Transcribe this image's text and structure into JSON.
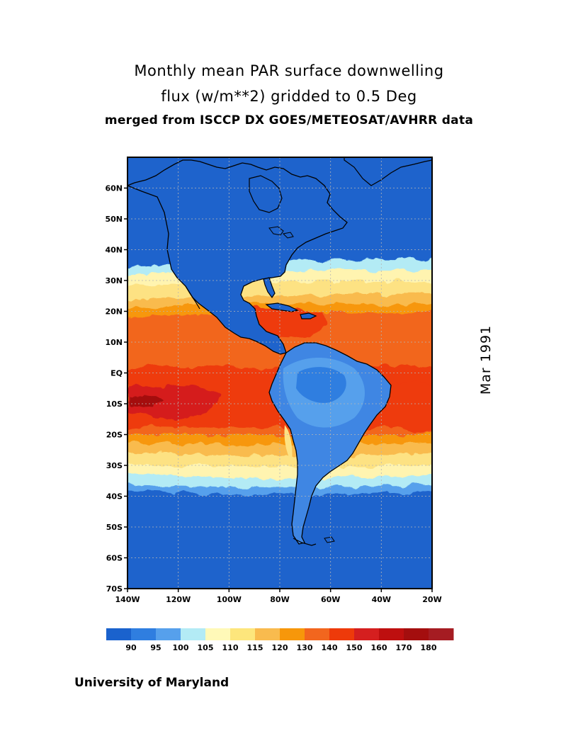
{
  "header": {
    "title_line1": "Monthly mean PAR surface downwelling",
    "title_line2": "flux (w/m**2) gridded to 0.5 Deg",
    "title_line3": "merged from ISCCP DX GOES/METEOSAT/AVHRR data"
  },
  "date_label": "Mar 1991",
  "credit": "University of Maryland",
  "map": {
    "lon_range": [
      -140,
      -20
    ],
    "lat_range": [
      -70,
      70
    ],
    "x_ticks": [
      "140W",
      "120W",
      "100W",
      "80W",
      "60W",
      "40W",
      "20W"
    ],
    "y_ticks": [
      "60N",
      "50N",
      "40N",
      "30N",
      "20N",
      "10N",
      "EQ",
      "10S",
      "20S",
      "30S",
      "40S",
      "50S",
      "60S",
      "70S"
    ],
    "gridlines": "dotted",
    "ocean_color": "#1e63cc",
    "coastline_color": "#000000"
  },
  "colorbar": {
    "colors": [
      "#1a62cd",
      "#2f7ee0",
      "#56a0ec",
      "#b3ebf5",
      "#fff9b8",
      "#fde67c",
      "#f9bb4e",
      "#f7970a",
      "#f2661e",
      "#ee3a0a",
      "#d51f1f",
      "#be0f0f",
      "#a40e0e",
      "#a51c22"
    ],
    "labels": [
      "90",
      "95",
      "100",
      "105",
      "110",
      "115",
      "120",
      "130",
      "140",
      "150",
      "160",
      "170",
      "180"
    ]
  }
}
